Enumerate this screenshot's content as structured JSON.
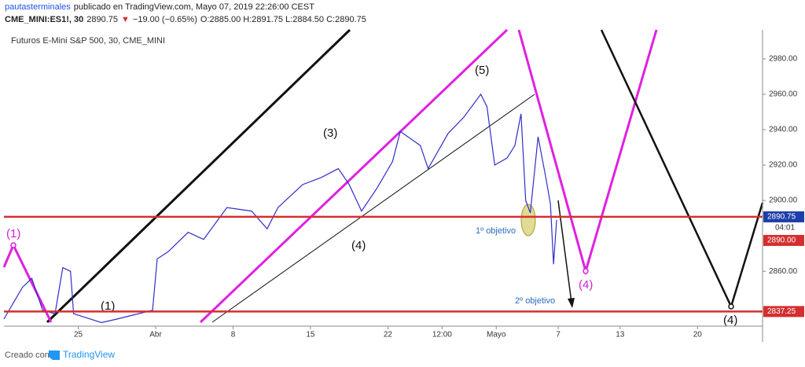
{
  "header": {
    "author": "pautasterminales",
    "published": "publicado en TradingView.com, Mayo 07, 2019 22:26:00 CEST",
    "symbol": "CME_MINI:ES1!, 30",
    "price": "2890.75",
    "direction": "▼",
    "change": "−19.00 (−0.65%)",
    "ohlc": "O:2885.00 H:2891.75 L:2884.50 C:2890.75"
  },
  "chart_data": {
    "type": "line",
    "title": "Futuros E-Mini S&P 500, 30, CME_MINI",
    "x": [
      -4.8,
      -3.6,
      -3.0,
      -2.3,
      -1.5,
      -1.0,
      -0.5,
      -0.3,
      1.5,
      2.5,
      4.8,
      5.1,
      5.8,
      7.1,
      8.1,
      9.6,
      11.2,
      12.2,
      12.9,
      14.5,
      15.7,
      16.8,
      17.5,
      18.3,
      19.3,
      20.3,
      20.8,
      22.1,
      22.6,
      23.9,
      24.9,
      26.0,
      26.4,
      26.9,
      27.7,
      28.2,
      28.6,
      28.9,
      29.2,
      29.7,
      30.2,
      30.5,
      30.7,
      30.9
    ],
    "series": [
      {
        "color": "#2f2fc8",
        "values": [
          2833,
          2851,
          2856,
          2838,
          2836,
          2862,
          2860,
          2836,
          2831,
          2833,
          2838,
          2867,
          2871,
          2882,
          2878,
          2896,
          2894,
          2884,
          2896,
          2909,
          2913,
          2918,
          2909,
          2894,
          2907,
          2922,
          2939,
          2931,
          2918,
          2938,
          2947,
          2960,
          2953,
          2920,
          2924,
          2931,
          2949,
          2900,
          2893,
          2936,
          2913,
          2898,
          2864,
          2889
        ]
      }
    ],
    "xlim": [
      -4.8,
      44.2
    ],
    "ylim": [
      2829,
      2996.4
    ],
    "xticks": [
      {
        "value": 0,
        "label": "25"
      },
      {
        "value": 5,
        "label": "Abr"
      },
      {
        "value": 10,
        "label": "8"
      },
      {
        "value": 15,
        "label": "15"
      },
      {
        "value": 20,
        "label": "22"
      },
      {
        "value": 23.5,
        "label": "12:00"
      },
      {
        "value": 27,
        "label": "Mayo"
      },
      {
        "value": 31,
        "label": "7"
      },
      {
        "value": 35,
        "label": "13"
      },
      {
        "value": 40,
        "label": "20"
      }
    ],
    "yticks": [
      {
        "value": 2980,
        "label": "2980.00"
      },
      {
        "value": 2960,
        "label": "2960.00"
      },
      {
        "value": 2940,
        "label": "2940.00"
      },
      {
        "value": 2920,
        "label": "2920.00"
      },
      {
        "value": 2900,
        "label": "2900.00"
      },
      {
        "value": 2860,
        "label": "2860.00"
      }
    ],
    "grid": true,
    "price_lines": [
      {
        "value": 2890.75,
        "label": "2890.75",
        "color": "#1e3ea8"
      },
      {
        "value": 2837.25,
        "label": "2837.25",
        "color": "#d32f2f"
      }
    ],
    "countdown": "04:01",
    "stop_label": "2890.00",
    "annotations": [
      "(1)",
      "(1)",
      "(3)",
      "(5)",
      "(4)",
      "(4)",
      "(4)",
      "1º objetivo",
      "2º objetivo"
    ]
  },
  "footer": {
    "created": "Creado con",
    "brand": "TradingView"
  }
}
